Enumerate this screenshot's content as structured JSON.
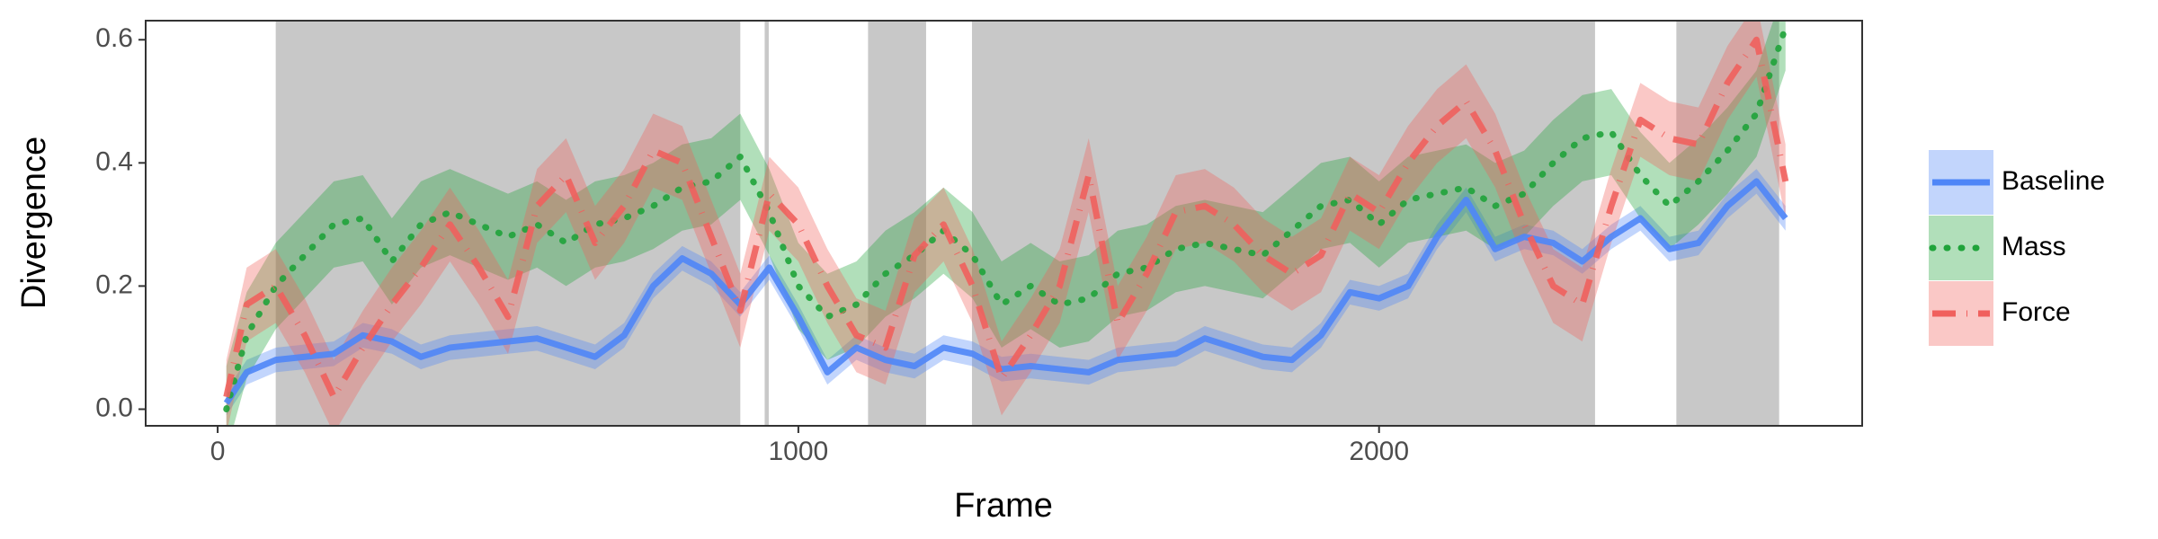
{
  "chart_data": {
    "type": "line",
    "xlabel": "Frame",
    "ylabel": "Divergence",
    "x": [
      15,
      50,
      100,
      150,
      200,
      250,
      300,
      350,
      400,
      450,
      500,
      550,
      600,
      650,
      700,
      750,
      800,
      850,
      900,
      950,
      1000,
      1050,
      1100,
      1150,
      1200,
      1250,
      1300,
      1350,
      1400,
      1450,
      1500,
      1550,
      1600,
      1650,
      1700,
      1750,
      1800,
      1850,
      1900,
      1950,
      2000,
      2050,
      2100,
      2150,
      2200,
      2250,
      2300,
      2350,
      2400,
      2450,
      2500,
      2550,
      2600,
      2650,
      2700
    ],
    "series": [
      {
        "name": "Baseline",
        "color": "#4f86f7",
        "linestyle": "solid",
        "error": 0.02,
        "values": [
          0.01,
          0.06,
          0.08,
          0.085,
          0.09,
          0.12,
          0.11,
          0.085,
          0.1,
          0.105,
          0.11,
          0.115,
          0.1,
          0.085,
          0.12,
          0.2,
          0.245,
          0.22,
          0.17,
          0.23,
          0.15,
          0.06,
          0.1,
          0.08,
          0.07,
          0.1,
          0.09,
          0.065,
          0.07,
          0.065,
          0.06,
          0.08,
          0.085,
          0.09,
          0.115,
          0.1,
          0.085,
          0.08,
          0.12,
          0.19,
          0.18,
          0.2,
          0.28,
          0.34,
          0.26,
          0.28,
          0.27,
          0.24,
          0.28,
          0.31,
          0.26,
          0.27,
          0.33,
          0.37,
          0.31
        ]
      },
      {
        "name": "Mass",
        "color": "#1fa33a",
        "linestyle": "dotted",
        "error": 0.07,
        "values": [
          0.0,
          0.12,
          0.2,
          0.25,
          0.3,
          0.31,
          0.24,
          0.3,
          0.32,
          0.3,
          0.28,
          0.3,
          0.27,
          0.3,
          0.31,
          0.33,
          0.36,
          0.37,
          0.41,
          0.32,
          0.2,
          0.15,
          0.17,
          0.22,
          0.25,
          0.29,
          0.25,
          0.17,
          0.2,
          0.17,
          0.18,
          0.22,
          0.23,
          0.26,
          0.27,
          0.26,
          0.25,
          0.29,
          0.33,
          0.34,
          0.3,
          0.34,
          0.35,
          0.36,
          0.33,
          0.35,
          0.4,
          0.44,
          0.45,
          0.38,
          0.33,
          0.37,
          0.42,
          0.48,
          0.62
        ]
      },
      {
        "name": "Force",
        "color": "#f0605d",
        "linestyle": "dashdot",
        "error": 0.06,
        "values": [
          0.02,
          0.17,
          0.2,
          0.12,
          0.02,
          0.1,
          0.17,
          0.23,
          0.3,
          0.23,
          0.15,
          0.33,
          0.38,
          0.27,
          0.33,
          0.42,
          0.4,
          0.28,
          0.16,
          0.35,
          0.3,
          0.2,
          0.12,
          0.1,
          0.25,
          0.3,
          0.2,
          0.05,
          0.12,
          0.2,
          0.38,
          0.14,
          0.22,
          0.32,
          0.33,
          0.3,
          0.25,
          0.22,
          0.25,
          0.35,
          0.32,
          0.4,
          0.46,
          0.5,
          0.42,
          0.3,
          0.2,
          0.17,
          0.33,
          0.47,
          0.44,
          0.43,
          0.53,
          0.6,
          0.37
        ]
      }
    ],
    "shaded_regions": [
      [
        100,
        900
      ],
      [
        942,
        949
      ],
      [
        1120,
        1220
      ],
      [
        1299,
        2372
      ],
      [
        2512,
        2689
      ]
    ],
    "shade_color": "#c8c8c8",
    "xlim": [
      -124,
      2832
    ],
    "ylim": [
      -0.027,
      0.631
    ],
    "xticks": [
      0,
      1000,
      2000
    ],
    "yticks": [
      {
        "value": 0,
        "label": "0.0"
      },
      0.2,
      0.4,
      0.6
    ],
    "grid": false
  }
}
